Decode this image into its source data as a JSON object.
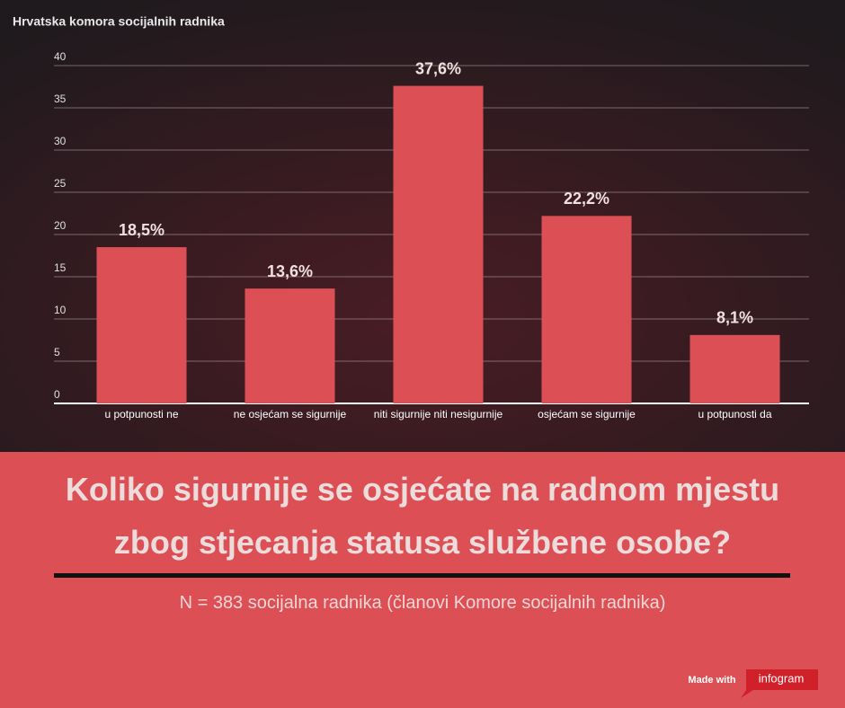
{
  "chart_data": {
    "type": "bar",
    "source": "Hrvatska komora socijalnih radnika",
    "title": "Koliko sigurnije se osjećate na radnom mjestu zbog stjecanja statusa službene osobe?",
    "subtitle": "N = 383 socijalna radnika (članovi Komore socijalnih radnika)",
    "credit": "Made with",
    "brand": "infogram",
    "categories": [
      "u potpunosti ne",
      "ne osjećam se sigurnije",
      "niti sigurnije niti nesigurnije",
      "osjećam se sigurnije",
      "u potpunosti da"
    ],
    "values": [
      18.5,
      13.6,
      37.6,
      22.2,
      8.1
    ],
    "value_labels": [
      "18,5%",
      "13,6%",
      "37,6%",
      "22,2%",
      "8,1%"
    ],
    "color": "#dc5055",
    "ylim": [
      0,
      40
    ],
    "yticks": [
      0,
      5,
      10,
      15,
      20,
      25,
      30,
      35,
      40
    ],
    "grid": true
  }
}
